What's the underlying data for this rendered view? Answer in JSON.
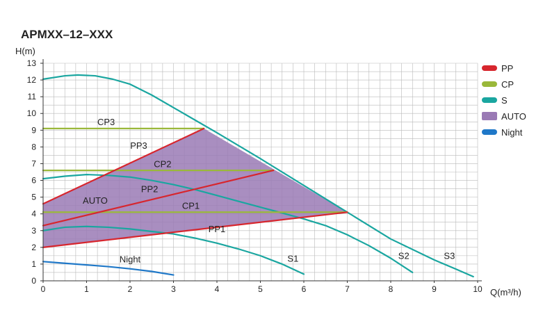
{
  "chart_data": {
    "type": "line",
    "title": "APMXX–12–XXX",
    "xlabel": "Q(m³/h)",
    "ylabel": "H(m)",
    "xlim": [
      0,
      10
    ],
    "ylim": [
      0,
      13
    ],
    "x_ticks": [
      "0",
      "1",
      "2",
      "3",
      "4",
      "5",
      "6",
      "7",
      "8",
      "9",
      "10"
    ],
    "y_ticks": [
      "0",
      "1",
      "2",
      "3",
      "4",
      "5",
      "6",
      "7",
      "8",
      "9",
      "10",
      "11",
      "12",
      "13"
    ],
    "grid": true,
    "legend_position": "right",
    "legend": [
      {
        "name": "PP",
        "color": "#d7262e"
      },
      {
        "name": "CP",
        "color": "#9ab83a"
      },
      {
        "name": "S",
        "color": "#1aa6a0"
      },
      {
        "name": "AUTO",
        "color": "#9a7ab5"
      },
      {
        "name": "Night",
        "color": "#1f78c8"
      }
    ],
    "auto_region": {
      "name": "AUTO",
      "color": "#9a7ab5",
      "label": "AUTO",
      "polygon": [
        [
          0,
          2.0
        ],
        [
          0,
          4.6
        ],
        [
          3.7,
          9.1
        ],
        [
          7.0,
          4.1
        ]
      ]
    },
    "series": [
      {
        "name": "PP1",
        "group": "PP",
        "color": "#d7262e",
        "label": "PP1",
        "x": [
          0,
          7.0
        ],
        "y": [
          2.0,
          4.1
        ]
      },
      {
        "name": "PP2",
        "group": "PP",
        "color": "#d7262e",
        "label": "PP2",
        "x": [
          0,
          5.3
        ],
        "y": [
          3.3,
          6.6
        ]
      },
      {
        "name": "PP3",
        "group": "PP",
        "color": "#d7262e",
        "label": "PP3",
        "x": [
          0,
          3.7
        ],
        "y": [
          4.6,
          9.1
        ]
      },
      {
        "name": "CP1",
        "group": "CP",
        "color": "#9ab83a",
        "label": "CP1",
        "x": [
          0,
          7.0
        ],
        "y": [
          4.1,
          4.1
        ]
      },
      {
        "name": "CP2",
        "group": "CP",
        "color": "#9ab83a",
        "label": "CP2",
        "x": [
          0,
          5.3
        ],
        "y": [
          6.6,
          6.6
        ]
      },
      {
        "name": "CP3",
        "group": "CP",
        "color": "#9ab83a",
        "label": "CP3",
        "x": [
          0,
          3.7
        ],
        "y": [
          9.1,
          9.1
        ]
      },
      {
        "name": "S1",
        "group": "S",
        "color": "#1aa6a0",
        "label": "S1",
        "x": [
          0,
          0.5,
          1.0,
          1.5,
          2.0,
          2.5,
          3.0,
          3.5,
          4.0,
          4.5,
          5.0,
          5.5,
          6.0
        ],
        "y": [
          3.0,
          3.2,
          3.25,
          3.2,
          3.1,
          2.95,
          2.8,
          2.55,
          2.25,
          1.9,
          1.5,
          1.0,
          0.4
        ]
      },
      {
        "name": "S2",
        "group": "S",
        "color": "#1aa6a0",
        "label": "S2",
        "x": [
          0,
          0.5,
          1.0,
          1.5,
          2.0,
          2.5,
          3.0,
          3.5,
          4.0,
          4.5,
          5.0,
          5.5,
          6.0,
          6.5,
          7.0,
          7.5,
          8.0,
          8.5
        ],
        "y": [
          6.1,
          6.25,
          6.35,
          6.3,
          6.2,
          6.0,
          5.75,
          5.45,
          5.1,
          4.75,
          4.4,
          4.05,
          3.7,
          3.3,
          2.75,
          2.1,
          1.35,
          0.5
        ]
      },
      {
        "name": "S3",
        "group": "S",
        "color": "#1aa6a0",
        "label": "S3",
        "x": [
          0,
          0.5,
          0.8,
          1.2,
          1.6,
          2.0,
          2.5,
          3.0,
          3.5,
          4.0,
          5.0,
          6.0,
          7.0,
          8.0,
          9.0,
          9.5,
          9.9
        ],
        "y": [
          12.05,
          12.25,
          12.3,
          12.25,
          12.05,
          11.75,
          11.1,
          10.35,
          9.6,
          8.85,
          7.3,
          5.7,
          4.1,
          2.5,
          1.25,
          0.7,
          0.25
        ]
      },
      {
        "name": "Night",
        "group": "Night",
        "color": "#1f78c8",
        "label": "Night",
        "x": [
          0,
          0.5,
          1.0,
          1.5,
          2.0,
          2.5,
          3.0
        ],
        "y": [
          1.15,
          1.05,
          0.95,
          0.85,
          0.72,
          0.56,
          0.35
        ]
      }
    ],
    "curve_labels": [
      {
        "text": "PP1",
        "x": 4.0,
        "y": 2.9
      },
      {
        "text": "PP2",
        "x": 2.45,
        "y": 5.3
      },
      {
        "text": "PP3",
        "x": 2.2,
        "y": 7.9
      },
      {
        "text": "CP1",
        "x": 3.4,
        "y": 4.3
      },
      {
        "text": "CP2",
        "x": 2.75,
        "y": 6.8
      },
      {
        "text": "CP3",
        "x": 1.45,
        "y": 9.3
      },
      {
        "text": "AUTO",
        "x": 1.2,
        "y": 4.6
      },
      {
        "text": "S1",
        "x": 5.75,
        "y": 1.15
      },
      {
        "text": "S2",
        "x": 8.3,
        "y": 1.3
      },
      {
        "text": "S3",
        "x": 9.35,
        "y": 1.3
      },
      {
        "text": "Night",
        "x": 2.0,
        "y": 1.1
      }
    ]
  }
}
